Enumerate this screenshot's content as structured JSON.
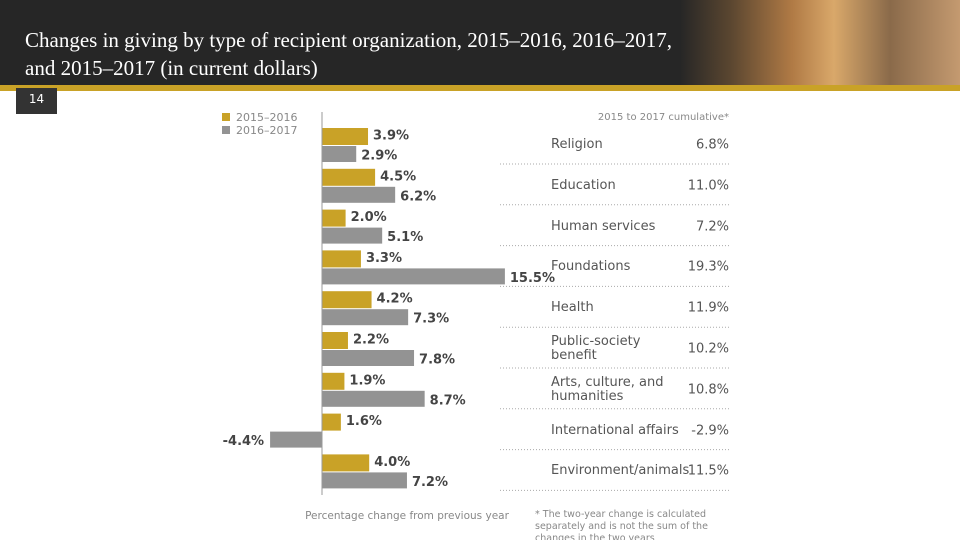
{
  "header": {
    "title": "Changes in giving by type of recipient organization, 2015–2016, 2016–2017, and 2015–2017 (in current dollars)",
    "slide_number": "14"
  },
  "chart_data": {
    "type": "hbar",
    "categories": [
      "Religion",
      "Education",
      "Human services",
      "Foundations",
      "Health",
      "Public-society benefit",
      "Arts, culture, and humanities",
      "International affairs",
      "Environment/animals"
    ],
    "series": [
      {
        "name": "2015–2016",
        "color": "#c9a227",
        "values": [
          3.9,
          4.5,
          2.0,
          3.3,
          4.2,
          2.2,
          1.9,
          1.6,
          4.0
        ],
        "value_labels": [
          "3.9%",
          "4.5%",
          "2.0%",
          "3.3%",
          "4.2%",
          "2.2%",
          "1.9%",
          "1.6%",
          "4.0%"
        ]
      },
      {
        "name": "2016–2017",
        "color": "#939393",
        "values": [
          2.9,
          6.2,
          5.1,
          15.5,
          7.3,
          7.8,
          8.7,
          -4.4,
          7.2
        ],
        "value_labels": [
          "2.9%",
          "6.2%",
          "5.1%",
          "15.5%",
          "7.3%",
          "7.8%",
          "8.7%",
          "-4.4%",
          "7.2%"
        ]
      }
    ],
    "xlabel": "Percentage change from previous year",
    "cumulative_header": "2015 to 2017 cumulative*",
    "cumulative_labels": [
      "6.8%",
      "11.0%",
      "7.2%",
      "19.3%",
      "11.9%",
      "10.2%",
      "10.8%",
      "-2.9%",
      "11.5%"
    ],
    "footnote": "* The two-year change is calculated separately and is not the sum of the changes in the two years"
  }
}
